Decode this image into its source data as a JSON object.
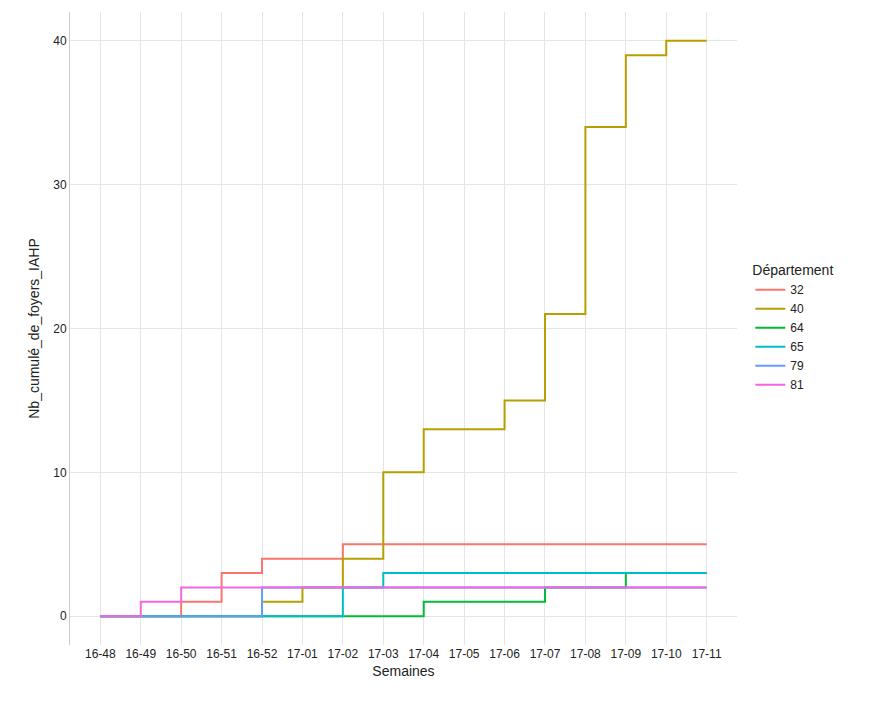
{
  "chart_data": {
    "type": "line",
    "line_style": "step",
    "x_label": "Semaines",
    "y_label": "Nb_cumulé_de_foyers_IAHP",
    "legend_title": "Département",
    "legend": "right",
    "grid": true,
    "categories": [
      "16-48",
      "16-49",
      "16-50",
      "16-51",
      "16-52",
      "17-01",
      "17-02",
      "17-03",
      "17-04",
      "17-05",
      "17-06",
      "17-07",
      "17-08",
      "17-09",
      "17-10",
      "17-11"
    ],
    "ylim": [
      -2,
      42
    ],
    "yticks": [
      0,
      10,
      20,
      30,
      40
    ],
    "series": [
      {
        "name": "32",
        "color": "#F8766D",
        "values": [
          0,
          0,
          1,
          3,
          4,
          4,
          5,
          5,
          5,
          5,
          5,
          5,
          5,
          5,
          5,
          5
        ]
      },
      {
        "name": "40",
        "color": "#B79F00",
        "values": [
          0,
          0,
          0,
          0,
          1,
          2,
          4,
          10,
          13,
          13,
          15,
          21,
          34,
          39,
          40,
          40
        ]
      },
      {
        "name": "64",
        "color": "#00BA38",
        "values": [
          0,
          0,
          0,
          0,
          0,
          0,
          0,
          0,
          1,
          1,
          1,
          2,
          2,
          3,
          3,
          3
        ]
      },
      {
        "name": "65",
        "color": "#00BFC4",
        "values": [
          0,
          0,
          0,
          0,
          0,
          0,
          2,
          3,
          3,
          3,
          3,
          3,
          3,
          3,
          3,
          3
        ]
      },
      {
        "name": "79",
        "color": "#619CFF",
        "values": [
          0,
          0,
          0,
          0,
          2,
          2,
          2,
          2,
          2,
          2,
          2,
          2,
          2,
          2,
          2,
          2
        ]
      },
      {
        "name": "81",
        "color": "#F564E3",
        "values": [
          0,
          1,
          2,
          2,
          2,
          2,
          2,
          2,
          2,
          2,
          2,
          2,
          2,
          2,
          2,
          2
        ]
      }
    ]
  }
}
